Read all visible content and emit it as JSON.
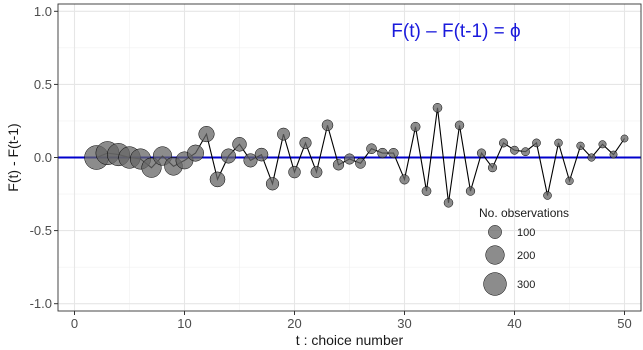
{
  "chart_data": {
    "type": "scatter",
    "xlabel": "t : choice number",
    "ylabel": "F(t) - F(t-1)",
    "xlim": [
      -1.5,
      51.5
    ],
    "ylim": [
      -1.05,
      1.05
    ],
    "x_ticks": [
      0,
      10,
      20,
      30,
      40,
      50
    ],
    "x_tick_labels": [
      "0",
      "10",
      "20",
      "30",
      "40",
      "50"
    ],
    "y_ticks": [
      1.0,
      0.5,
      0.0,
      -0.5,
      -1.0
    ],
    "y_tick_labels": [
      "1.0",
      "0.5",
      "0.0",
      "-0.5",
      "-1.0"
    ],
    "grid": true,
    "reference_line": {
      "y": 0,
      "color": "#0000cc"
    },
    "annotation": {
      "text": "F(t) – F(t-1) = ϕ",
      "color": "#1a1adc"
    },
    "point_color": "#666666",
    "line_color": "#000000",
    "legend": {
      "title": "No. observations",
      "position": "bottom-right",
      "labels": [
        "100",
        "200",
        "300"
      ],
      "sizes": [
        100,
        200,
        300
      ]
    },
    "series": [
      {
        "x": [
          2,
          3,
          4,
          5,
          6,
          7,
          8,
          9,
          10,
          11,
          12,
          13,
          14,
          15,
          16,
          17,
          18,
          19,
          20,
          21,
          22,
          23,
          24,
          25,
          26,
          27,
          28,
          29,
          30,
          31,
          32,
          33,
          34,
          35,
          36,
          37,
          38,
          39,
          40,
          41,
          42,
          43,
          44,
          45,
          46,
          47,
          48,
          49,
          50
        ],
        "y": [
          0.0,
          0.03,
          0.02,
          0.0,
          -0.01,
          -0.07,
          0.01,
          -0.06,
          -0.02,
          0.03,
          0.16,
          -0.15,
          0.01,
          0.09,
          -0.02,
          0.02,
          -0.18,
          0.16,
          -0.1,
          0.1,
          -0.1,
          0.22,
          -0.05,
          -0.01,
          -0.04,
          0.06,
          0.03,
          0.03,
          -0.15,
          0.21,
          -0.23,
          0.34,
          -0.31,
          0.22,
          -0.23,
          0.03,
          -0.07,
          0.1,
          0.05,
          0.04,
          0.1,
          -0.26,
          0.1,
          -0.16,
          0.08,
          0.0,
          0.09,
          0.02,
          0.13
        ],
        "n": [
          330,
          310,
          290,
          270,
          240,
          220,
          200,
          185,
          170,
          155,
          140,
          130,
          120,
          112,
          105,
          98,
          92,
          86,
          81,
          77,
          73,
          69,
          66,
          63,
          60,
          58,
          56,
          54,
          52,
          50,
          48,
          47,
          46,
          45,
          44,
          43,
          42,
          41,
          40,
          39,
          38,
          37,
          36,
          35,
          34,
          33,
          32,
          31,
          30
        ]
      }
    ]
  }
}
